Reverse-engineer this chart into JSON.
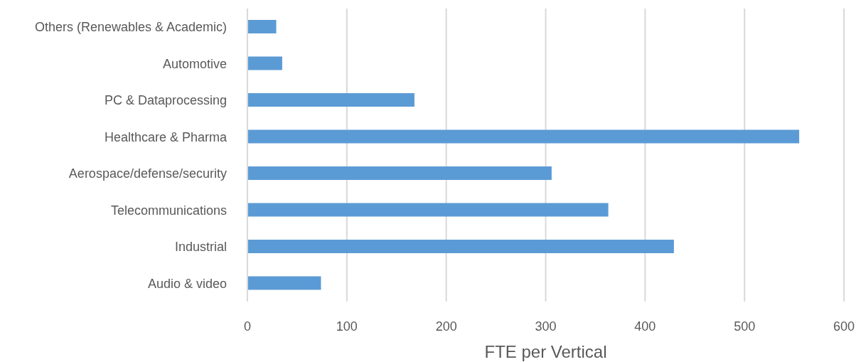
{
  "chart_data": {
    "type": "bar",
    "orientation": "horizontal",
    "xlabel": "FTE per Vertical",
    "categories": [
      "Others (Renewables & Academic)",
      "Automotive",
      "PC & Dataprocessing",
      "Healthcare & Pharma",
      "Aerospace/defense/security",
      "Telecommunications",
      "Industrial",
      "Audio & video"
    ],
    "values": [
      29,
      35,
      168,
      555,
      306,
      363,
      429,
      74
    ],
    "color": "#5b9bd5",
    "xlim": [
      0,
      600
    ],
    "xticks": [
      0,
      100,
      200,
      300,
      400,
      500,
      600
    ],
    "grid": "x"
  }
}
